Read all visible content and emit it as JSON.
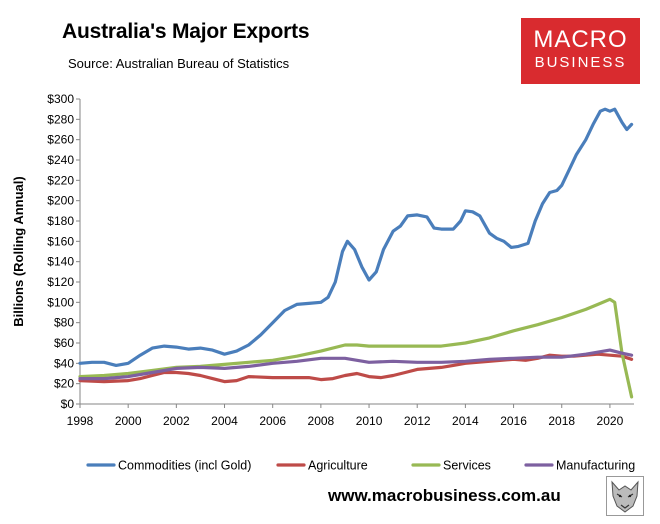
{
  "header": {
    "title": "Australia's Major Exports",
    "source": "Source: Australian Bureau of Statistics"
  },
  "logo": {
    "line1": "MACRO",
    "line2": "BUSINESS",
    "color": "#d92b2f"
  },
  "footer": {
    "url": "www.macrobusiness.com.au",
    "logo_icon": "wolf-logo-icon"
  },
  "chart_data": {
    "type": "line",
    "ylabel": "Billions (Rolling Annual)",
    "xlabel": "",
    "ylim": [
      0,
      300
    ],
    "xlim": [
      1998,
      2021
    ],
    "y_ticks": [
      "$0",
      "$20",
      "$40",
      "$60",
      "$80",
      "$100",
      "$120",
      "$140",
      "$160",
      "$180",
      "$200",
      "$220",
      "$240",
      "$260",
      "$280",
      "$300"
    ],
    "x_ticks": [
      "1998",
      "2000",
      "2002",
      "2004",
      "2006",
      "2008",
      "2010",
      "2012",
      "2014",
      "2016",
      "2018",
      "2020"
    ],
    "grid": false,
    "legend_position": "bottom",
    "series": [
      {
        "name": "Commodities (incl Gold)",
        "color": "#4a7ebb",
        "x": [
          1998,
          1998.5,
          1999,
          1999.5,
          2000,
          2000.5,
          2001,
          2001.5,
          2002,
          2002.5,
          2003,
          2003.5,
          2004,
          2004.5,
          2005,
          2005.5,
          2006,
          2006.5,
          2007,
          2007.5,
          2008,
          2008.3,
          2008.6,
          2008.9,
          2009.1,
          2009.4,
          2009.7,
          2010,
          2010.3,
          2010.6,
          2011,
          2011.3,
          2011.6,
          2012,
          2012.4,
          2012.7,
          2013,
          2013.5,
          2013.8,
          2014,
          2014.3,
          2014.6,
          2015,
          2015.3,
          2015.6,
          2015.9,
          2016.2,
          2016.6,
          2016.9,
          2017.2,
          2017.5,
          2017.8,
          2018,
          2018.3,
          2018.6,
          2019,
          2019.3,
          2019.6,
          2019.8,
          2020,
          2020.2,
          2020.5,
          2020.7,
          2020.9
        ],
        "values": [
          40,
          41,
          41,
          38,
          40,
          48,
          55,
          57,
          56,
          54,
          55,
          53,
          49,
          52,
          58,
          68,
          80,
          92,
          98,
          99,
          100,
          105,
          120,
          150,
          160,
          152,
          135,
          122,
          130,
          152,
          170,
          175,
          185,
          186,
          184,
          173,
          172,
          172,
          180,
          190,
          189,
          185,
          168,
          163,
          160,
          154,
          155,
          158,
          180,
          197,
          208,
          210,
          215,
          230,
          245,
          260,
          275,
          288,
          290,
          288,
          290,
          277,
          270,
          275
        ]
      },
      {
        "name": "Agriculture",
        "color": "#be4b48",
        "x": [
          1998,
          1999,
          2000,
          2000.5,
          2001,
          2001.5,
          2002,
          2002.5,
          2003,
          2003.5,
          2004,
          2004.5,
          2005,
          2006,
          2007,
          2007.5,
          2008,
          2008.5,
          2009,
          2009.5,
          2010,
          2010.5,
          2011,
          2011.5,
          2012,
          2012.5,
          2013,
          2013.5,
          2014,
          2015,
          2016,
          2016.5,
          2017,
          2017.5,
          2018,
          2018.5,
          2019,
          2019.5,
          2020,
          2020.5,
          2020.9
        ],
        "values": [
          23,
          22,
          23,
          25,
          28,
          31,
          31,
          30,
          28,
          25,
          22,
          23,
          27,
          26,
          26,
          26,
          24,
          25,
          28,
          30,
          27,
          26,
          28,
          31,
          34,
          35,
          36,
          38,
          40,
          42,
          44,
          43,
          45,
          48,
          47,
          47,
          48,
          49,
          48,
          47,
          44
        ]
      },
      {
        "name": "Services",
        "color": "#98b954",
        "x": [
          1998,
          1999,
          2000,
          2001,
          2002,
          2003,
          2004,
          2005,
          2006,
          2007,
          2008,
          2009,
          2009.5,
          2010,
          2011,
          2012,
          2013,
          2014,
          2015,
          2016,
          2017,
          2018,
          2019,
          2019.5,
          2020,
          2020.2,
          2020.5,
          2020.9
        ],
        "values": [
          27,
          28,
          30,
          33,
          36,
          37,
          39,
          41,
          43,
          47,
          52,
          58,
          58,
          57,
          57,
          57,
          57,
          60,
          65,
          72,
          78,
          85,
          93,
          98,
          103,
          100,
          50,
          7
        ]
      },
      {
        "name": "Manufacturing",
        "color": "#7d60a0",
        "x": [
          1998,
          1999,
          2000,
          2001,
          2002,
          2003,
          2004,
          2005,
          2006,
          2007,
          2008,
          2009,
          2010,
          2011,
          2012,
          2013,
          2014,
          2015,
          2016,
          2017,
          2018,
          2019,
          2020,
          2020.5,
          2020.9
        ],
        "values": [
          25,
          25,
          27,
          31,
          35,
          36,
          35,
          37,
          40,
          42,
          45,
          45,
          41,
          42,
          41,
          41,
          42,
          44,
          45,
          46,
          46,
          49,
          53,
          50,
          48
        ]
      }
    ]
  }
}
